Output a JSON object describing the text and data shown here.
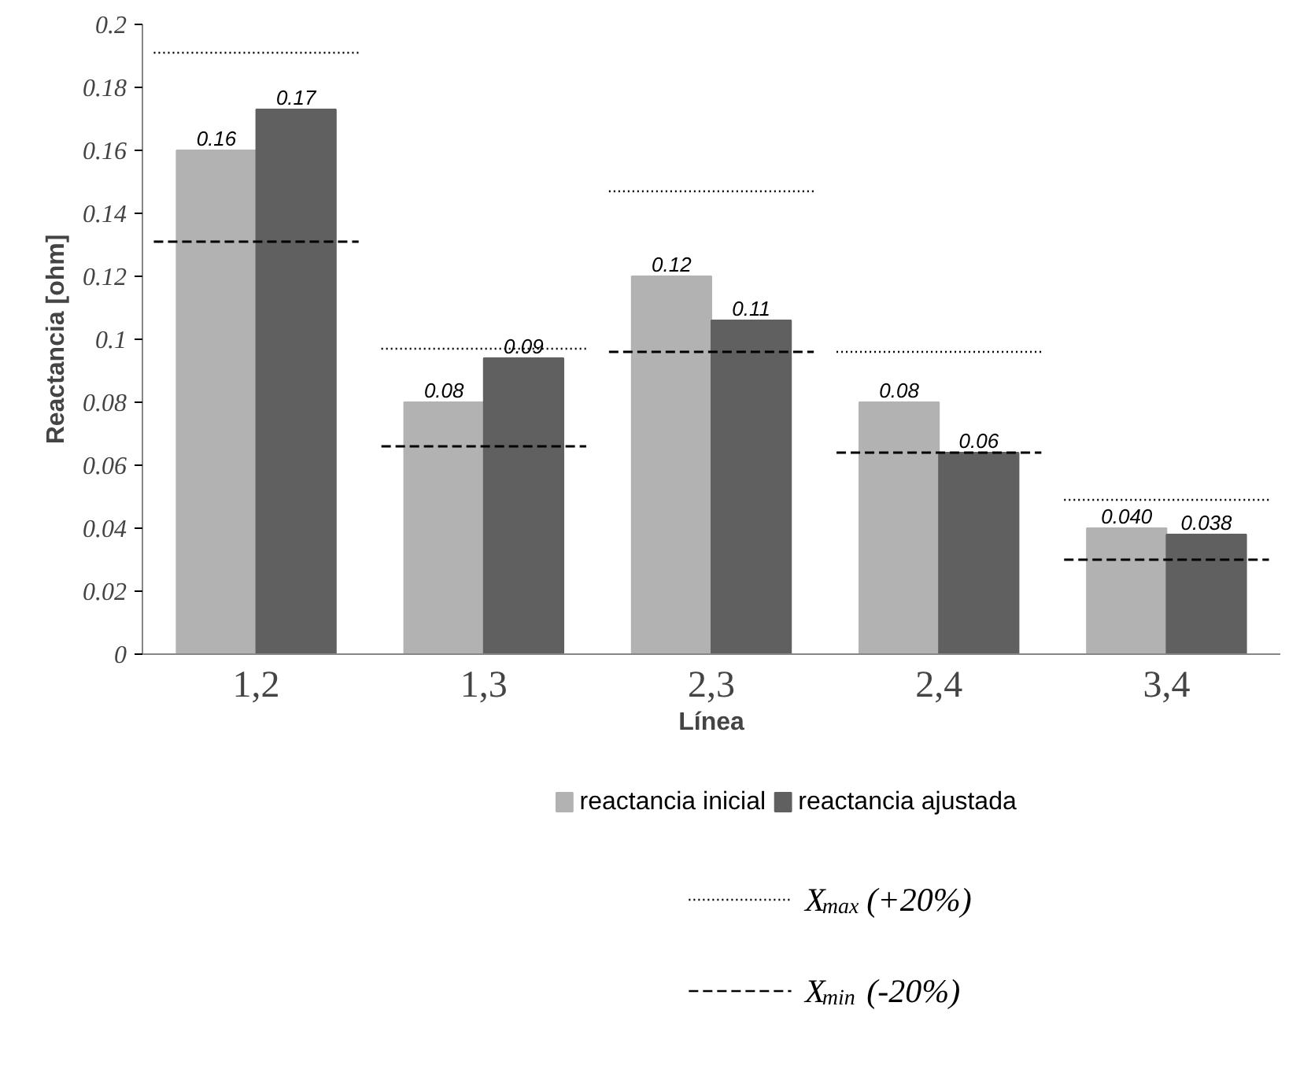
{
  "chart_data": {
    "type": "bar",
    "xlabel": "Línea",
    "ylabel": "Reactancia [ohm]",
    "categories": [
      "1,2",
      "1,3",
      "2,3",
      "2,4",
      "3,4"
    ],
    "series": [
      {
        "name": "reactancia inicial",
        "color": "#b2b2b2",
        "values": [
          0.16,
          0.08,
          0.12,
          0.08,
          0.04
        ],
        "value_labels": [
          "0.16",
          "0.08",
          "0.12",
          "0.08",
          "0.040"
        ]
      },
      {
        "name": "reactancia ajustada",
        "color": "#606060",
        "values": [
          0.173,
          0.094,
          0.106,
          0.064,
          0.038
        ],
        "value_labels": [
          "0.17",
          "0.09",
          "0.11",
          "0.06",
          "0.038"
        ]
      }
    ],
    "ref_lines": [
      {
        "axis": "y",
        "value": 0.191,
        "label": "X$_{max}$ (+20%)",
        "color": "#000000",
        "line_style": "dotted"
      },
      {
        "axis": "y",
        "value": 0.097,
        "color": "#000000",
        "line_style": "dotted"
      },
      {
        "axis": "y",
        "value": 0.147,
        "color": "#000000",
        "line_style": "dotted"
      },
      {
        "axis": "y",
        "value": 0.096,
        "color": "#000000",
        "line_style": "dotted"
      },
      {
        "axis": "y",
        "value": 0.049,
        "color": "#000000",
        "line_style": "dotted"
      },
      {
        "axis": "y",
        "value": 0.131,
        "label": "X$_{min}$ (-20%)",
        "color": "#000000",
        "line_style": "dashed"
      },
      {
        "axis": "y",
        "value": 0.066,
        "color": "#000000",
        "line_style": "dashed"
      },
      {
        "axis": "y",
        "value": 0.096,
        "color": "#000000",
        "line_style": "dashed"
      },
      {
        "axis": "y",
        "value": 0.064,
        "color": "#000000",
        "line_style": "dashed"
      },
      {
        "axis": "y",
        "value": 0.03,
        "color": "#000000",
        "line_style": "dashed"
      }
    ],
    "ylim": [
      0,
      0.2
    ],
    "yticks": [
      {
        "value": 0,
        "label": "0"
      },
      0.02,
      0.04,
      0.06,
      0.08,
      {
        "value": 0.1,
        "label": "0.1"
      },
      0.12,
      0.14,
      0.16,
      0.18,
      {
        "value": 0.2,
        "label": "0.2"
      }
    ],
    "grid": false,
    "legend": "bottom"
  }
}
